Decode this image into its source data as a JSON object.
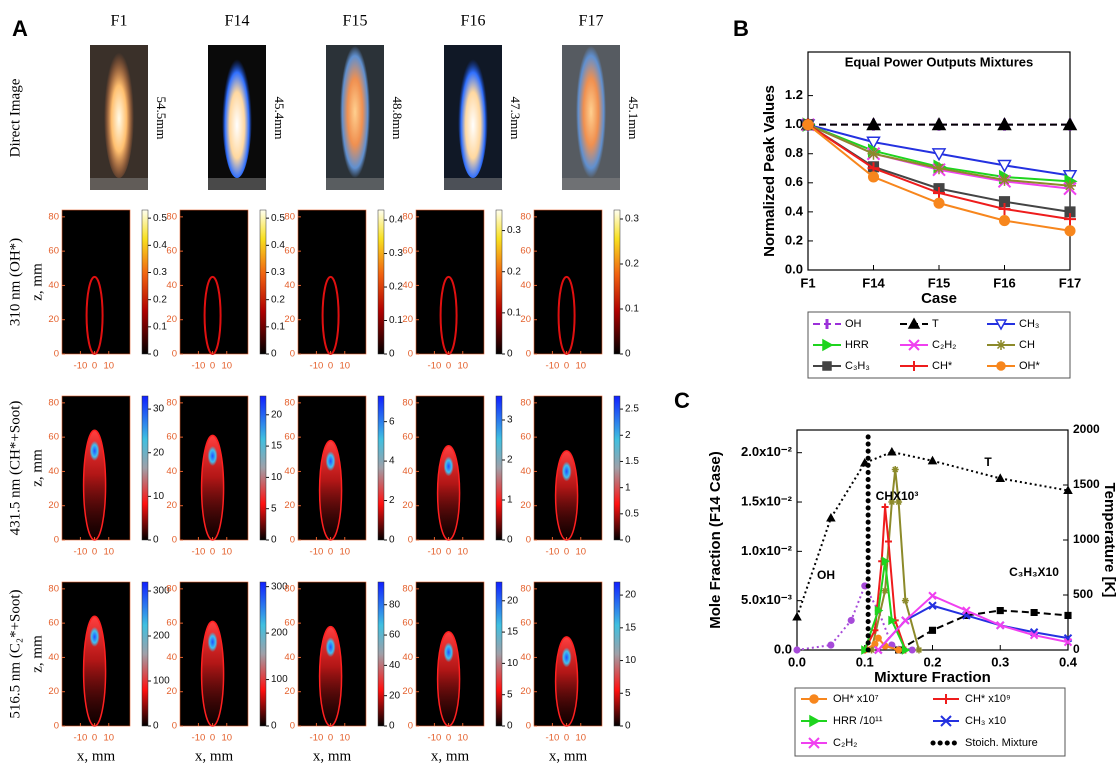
{
  "panel_labels": [
    "A",
    "B",
    "C"
  ],
  "figure_a": {
    "columns": [
      "F1",
      "F14",
      "F15",
      "F16",
      "F17"
    ],
    "row_labels": [
      "Direct Image",
      "310 nm (OH*)",
      "431.5 nm (CH*+Soot)",
      "516.5 nm (C₂*+Soot)"
    ],
    "flame_heights": [
      "54.5mm",
      "45.4mm",
      "48.8mm",
      "47.3mm",
      "45.1mm"
    ],
    "y_label": "z, mm",
    "x_label": "x, mm",
    "zlim": [
      0,
      84
    ],
    "zticks": [
      0,
      20,
      40,
      60,
      80
    ],
    "xlim": [
      -23,
      25
    ],
    "xticks": [
      -10,
      0,
      10
    ],
    "maps": [
      [
        {
          "clim": [
            0,
            0.53
          ],
          "cticks": [
            0,
            0.1,
            0.2,
            0.3,
            0.4,
            0.5
          ]
        },
        {
          "clim": [
            0,
            0.53
          ],
          "cticks": [
            0,
            0.1,
            0.2,
            0.3,
            0.4,
            0.5
          ]
        },
        {
          "clim": [
            0,
            0.43
          ],
          "cticks": [
            0,
            0.1,
            0.2,
            0.3,
            0.4
          ]
        },
        {
          "clim": [
            0,
            0.35
          ],
          "cticks": [
            0,
            0.1,
            0.2,
            0.3
          ]
        },
        {
          "clim": [
            0,
            0.32
          ],
          "cticks": [
            0,
            0.1,
            0.2,
            0.3
          ]
        }
      ],
      [
        {
          "clim": [
            0,
            33
          ],
          "cticks": [
            0,
            10,
            20,
            30
          ]
        },
        {
          "clim": [
            0,
            23
          ],
          "cticks": [
            0,
            5,
            10,
            15,
            20
          ]
        },
        {
          "clim": [
            0,
            7.3
          ],
          "cticks": [
            0,
            2,
            4,
            6
          ]
        },
        {
          "clim": [
            0,
            3.6
          ],
          "cticks": [
            0,
            1,
            2,
            3
          ]
        },
        {
          "clim": [
            0,
            2.75
          ],
          "cticks": [
            0,
            0.5,
            1,
            1.5,
            2,
            2.5
          ]
        }
      ],
      [
        {
          "clim": [
            0,
            320
          ],
          "cticks": [
            0,
            100,
            200,
            300
          ]
        },
        {
          "clim": [
            0,
            310
          ],
          "cticks": [
            0,
            100,
            200,
            300
          ]
        },
        {
          "clim": [
            0,
            95
          ],
          "cticks": [
            0,
            20,
            40,
            60,
            80
          ]
        },
        {
          "clim": [
            0,
            23
          ],
          "cticks": [
            0,
            5,
            10,
            15,
            20
          ]
        },
        {
          "clim": [
            0,
            22
          ],
          "cticks": [
            0,
            5,
            10,
            15,
            20
          ]
        }
      ]
    ]
  },
  "chart_data": [
    {
      "type": "line",
      "title": "Equal Power Outputs Mixtures",
      "y_label": "Normalized Peak Values",
      "x_label": "Case",
      "categories": [
        "F1",
        "F14",
        "F15",
        "F16",
        "F17"
      ],
      "ylim": [
        0,
        1.5
      ],
      "yticks": [
        {
          "value": 0,
          "label": "0.0"
        },
        0.2,
        0.4,
        0.6,
        0.8,
        {
          "value": 1,
          "label": "1.0"
        },
        1.2
      ],
      "series": [
        {
          "name": "OH",
          "color": "#9b30d9",
          "dash": "dashed",
          "marker": "vbar",
          "values": [
            1,
            1,
            1,
            1,
            1
          ]
        },
        {
          "name": "T",
          "color": "#000000",
          "dash": "dashed",
          "marker": "triangle-up",
          "values": [
            1,
            1,
            1,
            1,
            1
          ]
        },
        {
          "name": "CH₃",
          "color": "#2431e0",
          "dash": "solid",
          "marker": "triangle-down",
          "values": [
            1,
            0.88,
            0.8,
            0.72,
            0.65
          ]
        },
        {
          "name": "HRR",
          "color": "#1ed41e",
          "dash": "solid",
          "marker": "triangle-right",
          "values": [
            1,
            0.82,
            0.71,
            0.64,
            0.61
          ]
        },
        {
          "name": "C₂H₂",
          "color": "#f040f0",
          "dash": "solid",
          "marker": "cross",
          "values": [
            1,
            0.8,
            0.69,
            0.61,
            0.56
          ]
        },
        {
          "name": "CH",
          "color": "#8c8a2a",
          "dash": "solid",
          "marker": "asterisk",
          "values": [
            1,
            0.8,
            0.7,
            0.62,
            0.58
          ]
        },
        {
          "name": "C₃H₃",
          "color": "#444444",
          "dash": "solid",
          "marker": "square",
          "values": [
            1,
            0.71,
            0.56,
            0.47,
            0.4
          ]
        },
        {
          "name": "CH*",
          "color": "#ee1c1c",
          "dash": "solid",
          "marker": "plus",
          "values": [
            1,
            0.7,
            0.53,
            0.42,
            0.35
          ]
        },
        {
          "name": "OH*",
          "color": "#f7861d",
          "dash": "solid",
          "marker": "circle",
          "values": [
            1,
            0.64,
            0.46,
            0.34,
            0.27
          ]
        }
      ]
    },
    {
      "type": "line",
      "x_label": "Mixture Fraction",
      "y_label": "Mole Fraction (F14 Case)",
      "y2_label": "Temperature [K]",
      "xlim": [
        0,
        0.4
      ],
      "xticks": [
        {
          "value": 0,
          "label": "0.0"
        },
        0.1,
        0.2,
        0.3,
        0.4
      ],
      "ylim": [
        0,
        0.0223
      ],
      "yticks": [
        {
          "value": 0,
          "label": "0.0"
        },
        {
          "value": 0.005,
          "label": "5.0x10⁻³"
        },
        {
          "value": 0.01,
          "label": "1.0x10⁻²"
        },
        {
          "value": 0.015,
          "label": "1.5x10⁻²"
        },
        {
          "value": 0.02,
          "label": "2.0x10⁻²"
        }
      ],
      "y2lim": [
        0,
        2000
      ],
      "y2ticks": [
        0,
        500,
        1000,
        1500,
        2000
      ],
      "series": [
        {
          "name": "T",
          "color": "#000000",
          "dash": "dotted",
          "marker": "triangle-up",
          "in_legend": false,
          "axis": "y2",
          "x": [
            0,
            0.05,
            0.1,
            0.14,
            0.2,
            0.3,
            0.4
          ],
          "values": [
            300,
            1200,
            1700,
            1800,
            1720,
            1560,
            1450
          ]
        },
        {
          "name": "OH",
          "color": "#a64ad9",
          "dash": "dotted",
          "marker": "circle",
          "in_legend": false,
          "x": [
            0,
            0.05,
            0.08,
            0.1,
            0.12,
            0.14,
            0.17
          ],
          "values": [
            0,
            0.0005,
            0.003,
            0.0065,
            0.004,
            0.0005,
            0
          ]
        },
        {
          "name": "CHX10³",
          "color": "#8c8a2a",
          "dash": "solid",
          "marker": "asterisk",
          "in_legend": false,
          "x": [
            0.11,
            0.13,
            0.14,
            0.145,
            0.15,
            0.16,
            0.18
          ],
          "values": [
            0,
            0.006,
            0.015,
            0.0183,
            0.015,
            0.005,
            0
          ]
        },
        {
          "name": "C₃H₃X10",
          "color": "#000000",
          "dash": "dashed",
          "marker": "square",
          "in_legend": false,
          "x": [
            0.15,
            0.2,
            0.25,
            0.3,
            0.35,
            0.4
          ],
          "values": [
            0,
            0.002,
            0.0035,
            0.004,
            0.0038,
            0.0035
          ]
        },
        {
          "name": "OH* x10⁷",
          "color": "#f7861d",
          "dash": "solid",
          "marker": "circle",
          "in_legend": true,
          "x": [
            0.1,
            0.115,
            0.12,
            0.13,
            0.15
          ],
          "values": [
            0,
            0.0006,
            0.0012,
            0.0004,
            0
          ]
        },
        {
          "name": "CH* x10⁹",
          "color": "#ee1c1c",
          "dash": "solid",
          "marker": "plus",
          "in_legend": true,
          "x": [
            0.1,
            0.115,
            0.125,
            0.13,
            0.135,
            0.145,
            0.16
          ],
          "values": [
            0,
            0.002,
            0.009,
            0.0145,
            0.011,
            0.003,
            0
          ]
        },
        {
          "name": "HRR /10¹¹",
          "color": "#1ed41e",
          "dash": "solid",
          "marker": "triangle-right",
          "in_legend": true,
          "x": [
            0.1,
            0.12,
            0.13,
            0.14,
            0.16
          ],
          "values": [
            0,
            0.004,
            0.009,
            0.003,
            0
          ]
        },
        {
          "name": "CH₃ x10",
          "color": "#2431e0",
          "dash": "solid",
          "marker": "cross",
          "in_legend": true,
          "x": [
            0.12,
            0.16,
            0.2,
            0.25,
            0.3,
            0.35,
            0.4
          ],
          "values": [
            0,
            0.003,
            0.0045,
            0.0035,
            0.0025,
            0.0018,
            0.0012
          ]
        },
        {
          "name": "C₂H₂",
          "color": "#f040f0",
          "dash": "solid",
          "marker": "cross",
          "in_legend": true,
          "x": [
            0.12,
            0.16,
            0.2,
            0.25,
            0.3,
            0.35,
            0.4
          ],
          "values": [
            0,
            0.003,
            0.0055,
            0.004,
            0.0025,
            0.0015,
            0.0008
          ]
        },
        {
          "name": "Stoich. Mixture",
          "color": "#000000",
          "dash": "dots",
          "marker": "none",
          "in_legend": true,
          "x": [
            0.105,
            0.105
          ],
          "values": [
            0,
            0.0222
          ]
        }
      ]
    }
  ]
}
